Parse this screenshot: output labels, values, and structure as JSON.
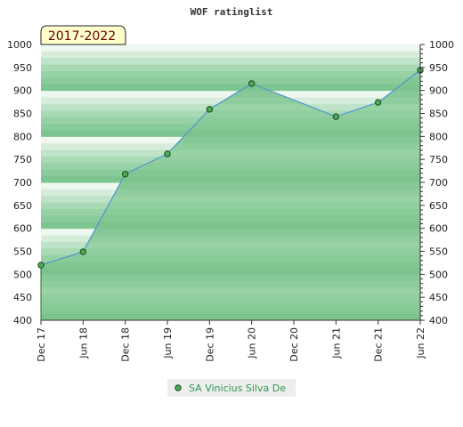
{
  "chart_data": {
    "type": "area",
    "title": "WOF ratinglist",
    "badge": "2017-2022",
    "x_ticks": [
      "Dec 17",
      "Jun 18",
      "Dec 18",
      "Jun 19",
      "Dec 19",
      "Jun 20",
      "Dec 20",
      "Jun 21",
      "Dec 21",
      "Jun 22"
    ],
    "y_ticks": [
      400,
      450,
      500,
      550,
      600,
      650,
      700,
      750,
      800,
      850,
      900,
      950,
      1000
    ],
    "ylim": [
      400,
      1000
    ],
    "series": [
      {
        "name": "SA Vinicius Silva De",
        "x": [
          "Dec 17",
          "Jun 18",
          "Dec 18",
          "Jun 19",
          "Dec 19",
          "Jun 20",
          "Jun 21",
          "Dec 21",
          "Jun 22"
        ],
        "values": [
          520,
          549,
          718,
          762,
          859,
          915,
          843,
          874,
          944
        ]
      }
    ],
    "legend_position": "bottom-center",
    "colors": {
      "line": "#5599cc",
      "area_fill": "#7dc590",
      "marker_fill": "#4daa5a",
      "marker_stroke": "#1a4a1a",
      "legend_text": "#2e9a4a",
      "badge_fill": "#ffffcc",
      "badge_text": "#660000"
    }
  }
}
